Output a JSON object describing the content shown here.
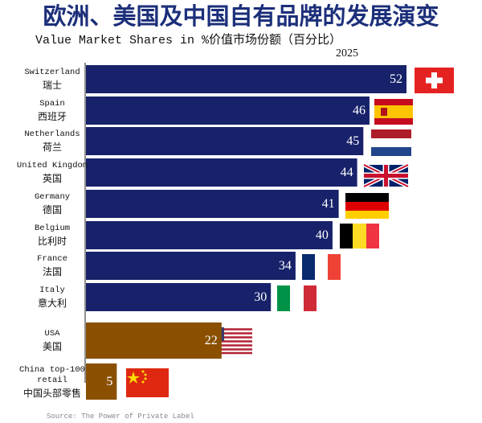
{
  "chart_data": {
    "type": "bar",
    "orientation": "horizontal",
    "title": "欧洲、美国及中国自有品牌的发展演变",
    "subtitle": "Value Market Shares in %价值市场份额（百分比）",
    "year": "2025",
    "categories": [
      "Switzerland",
      "Spain",
      "Netherlands",
      "United Kingdom",
      "Germany",
      "Belgium",
      "France",
      "Italy",
      "USA",
      "China top-100 retail"
    ],
    "categories_zh": [
      "瑞士",
      "西班牙",
      "荷兰",
      "英国",
      "德国",
      "比利时",
      "法国",
      "意大利",
      "美国",
      "中国头部零售"
    ],
    "values": [
      52,
      46,
      45,
      44,
      41,
      40,
      34,
      30,
      22,
      5
    ],
    "colors": [
      "#17226a",
      "#17226a",
      "#17226a",
      "#17226a",
      "#17226a",
      "#17226a",
      "#17226a",
      "#17226a",
      "#8a5000",
      "#8a5000"
    ],
    "source": "Source: The Power of Private Label"
  }
}
